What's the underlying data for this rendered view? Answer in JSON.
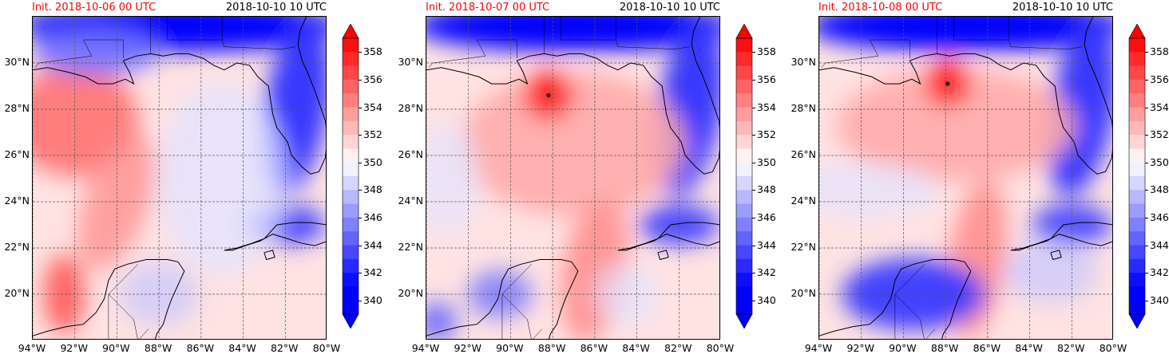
{
  "panels": [
    {
      "init_label": "Init. 2018-10-06 00 UTC",
      "valid_label": "2018-10-10 10 UTC",
      "storm_center": null,
      "variant": "early"
    },
    {
      "init_label": "Init. 2018-10-07 00 UTC",
      "valid_label": "2018-10-10 10 UTC",
      "storm_center": {
        "lon": -88.2,
        "lat": 28.6
      },
      "variant": "mid"
    },
    {
      "init_label": "Init. 2018-10-08 00 UTC",
      "valid_label": "2018-10-10 10 UTC",
      "storm_center": {
        "lon": -87.9,
        "lat": 29.1
      },
      "variant": "late"
    }
  ],
  "map_extent": {
    "lon_min": -94,
    "lon_max": -80,
    "lat_min": 18,
    "lat_max": 32
  },
  "lat_ticks": [
    "20°N",
    "22°N",
    "24°N",
    "26°N",
    "28°N",
    "30°N"
  ],
  "lat_values": [
    20,
    22,
    24,
    26,
    28,
    30
  ],
  "lon_ticks": [
    "94°W",
    "92°W",
    "90°W",
    "88°W",
    "86°W",
    "84°W",
    "82°W",
    "80°W"
  ],
  "lon_values": [
    -94,
    -92,
    -90,
    -88,
    -86,
    -84,
    -82,
    -80
  ],
  "colorbar": {
    "ticks": [
      "340",
      "342",
      "344",
      "346",
      "348",
      "350",
      "352",
      "354",
      "356",
      "358"
    ],
    "min": 339,
    "max": 359,
    "colors_low": "#0000ff",
    "colors_mid": "#ffffff",
    "colors_high": "#ff0000",
    "extend": "both"
  }
}
